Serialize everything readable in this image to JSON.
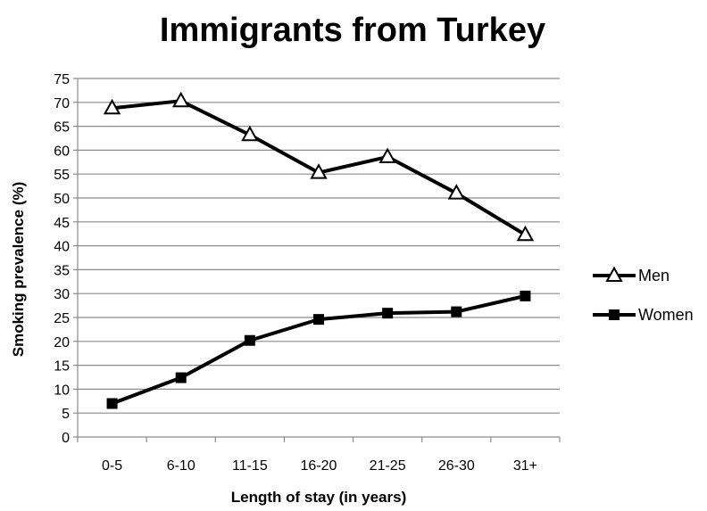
{
  "chart_data": {
    "type": "line",
    "title": "Immigrants from Turkey",
    "xlabel": "Length of stay (in years)",
    "ylabel": "Smoking prevalence (%)",
    "categories": [
      "0-5",
      "6-10",
      "11-15",
      "16-20",
      "21-25",
      "26-30",
      "31+"
    ],
    "ylim": [
      0,
      75
    ],
    "yticks": [
      0,
      5,
      10,
      15,
      20,
      25,
      30,
      35,
      40,
      45,
      50,
      55,
      60,
      65,
      70,
      75
    ],
    "grid": true,
    "legend_position": "right",
    "series": [
      {
        "name": "Men",
        "marker": "open-triangle",
        "color": "#000000",
        "values": [
          68.8,
          70.3,
          63.2,
          55.3,
          58.6,
          51.0,
          42.3
        ]
      },
      {
        "name": "Women",
        "marker": "filled-square",
        "color": "#000000",
        "values": [
          7.0,
          12.4,
          20.2,
          24.6,
          25.9,
          26.2,
          29.5
        ]
      }
    ]
  }
}
